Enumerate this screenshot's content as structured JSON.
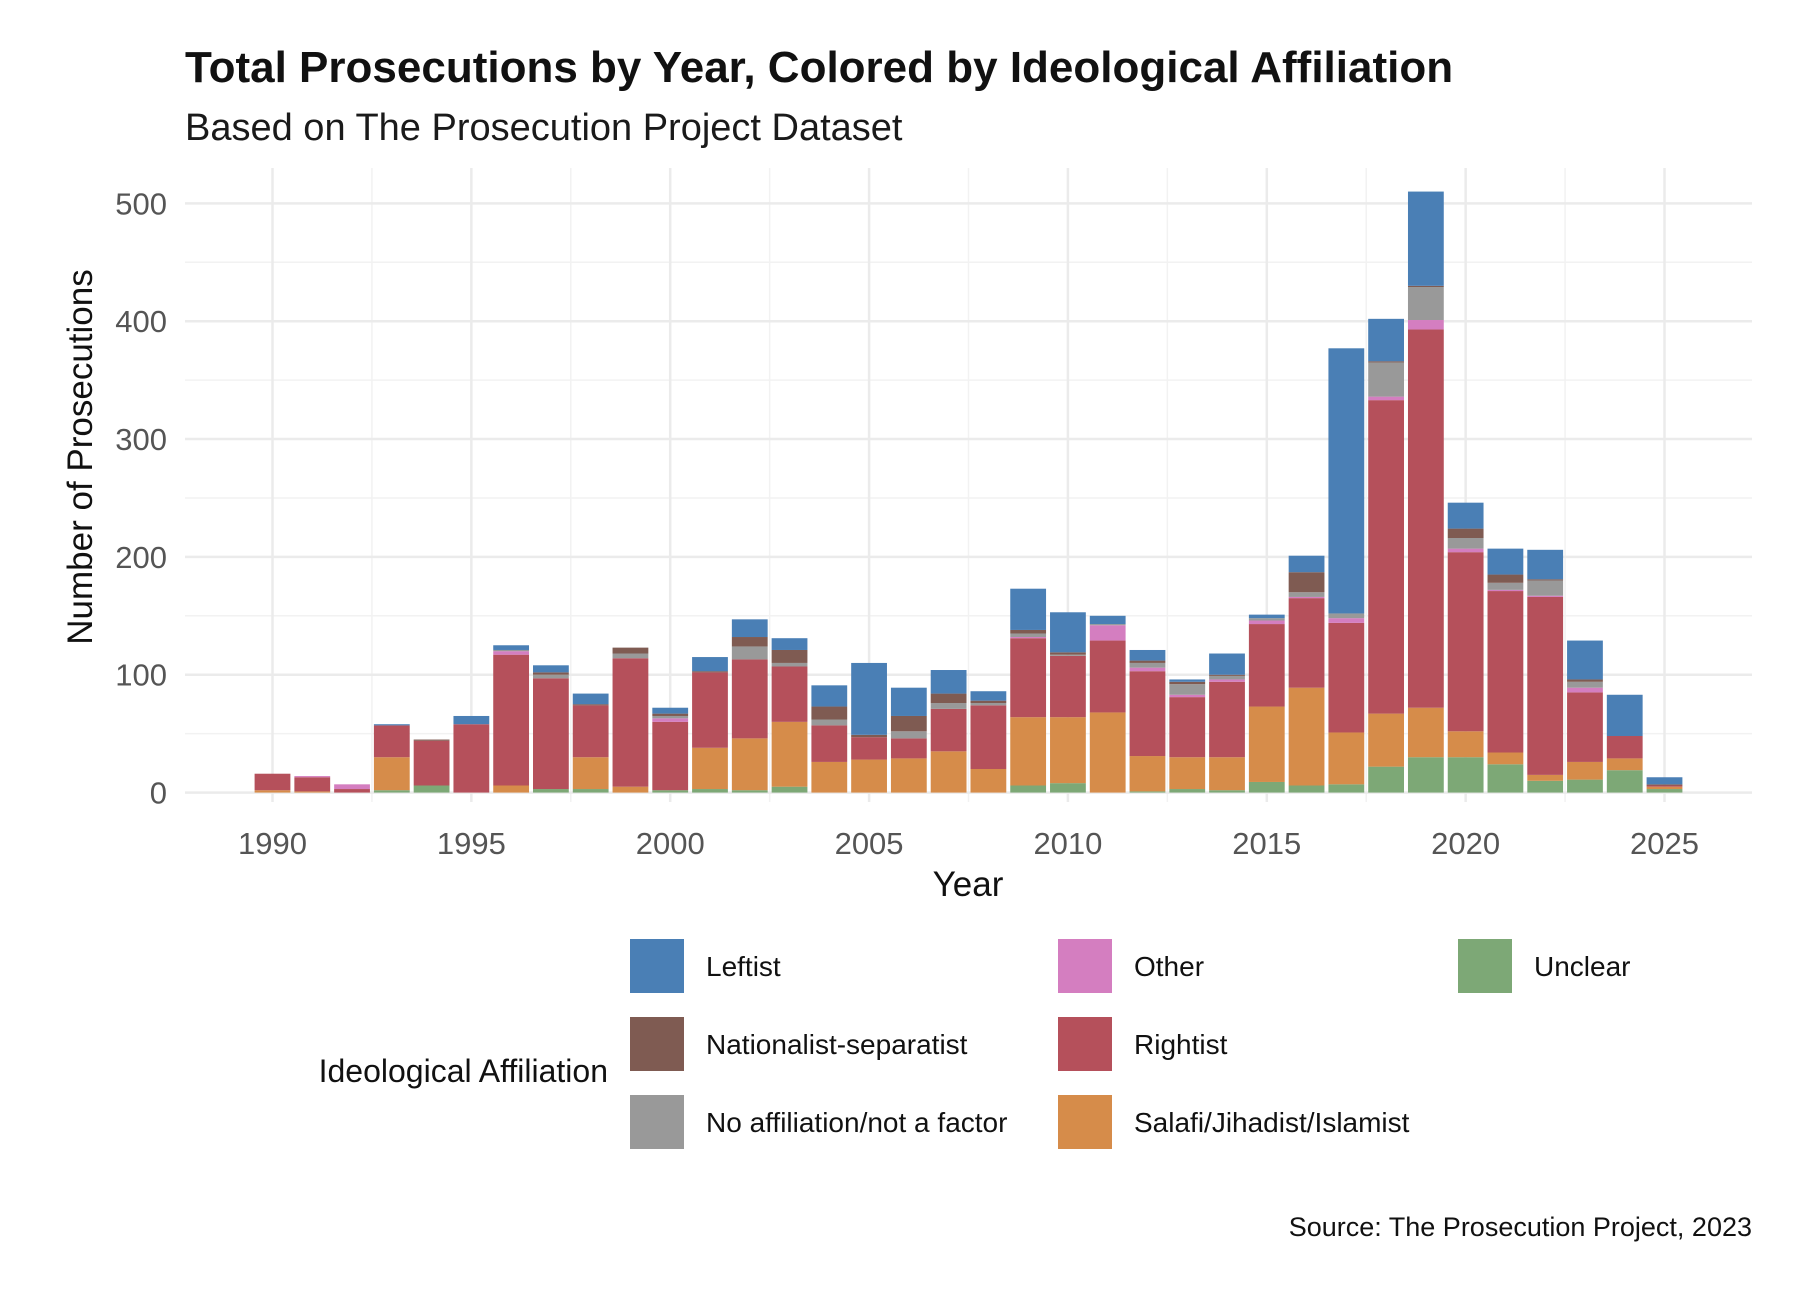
{
  "chart_data": {
    "type": "bar",
    "stacked": true,
    "title": "Total Prosecutions by Year, Colored by Ideological Affiliation",
    "subtitle": "Based on The Prosecution Project Dataset",
    "xlabel": "Year",
    "ylabel": "Number of Prosecutions",
    "caption": "Source: The Prosecution Project, 2023",
    "xlim": [
      1987.8,
      2027.2
    ],
    "ylim": [
      -8,
      530
    ],
    "x_ticks": [
      1990,
      1995,
      2000,
      2005,
      2010,
      2015,
      2020,
      2025
    ],
    "y_ticks": [
      0,
      100,
      200,
      300,
      400,
      500
    ],
    "grid": true,
    "legend": {
      "title": "Ideological Affiliation",
      "placement": "bottom",
      "columns": [
        [
          "Leftist",
          "Nationalist-separatist",
          "No affiliation/not a factor"
        ],
        [
          "Other",
          "Rightist",
          "Salafi/Jihadist/Islamist"
        ],
        [
          "Unclear"
        ]
      ]
    },
    "stack_order": [
      "Unclear",
      "Salafi/Jihadist/Islamist",
      "Rightist",
      "Other",
      "No affiliation/not a factor",
      "Nationalist-separatist",
      "Leftist"
    ],
    "series": [
      {
        "name": "Leftist",
        "color": "#4A7FB5"
      },
      {
        "name": "Nationalist-separatist",
        "color": "#7F5B52"
      },
      {
        "name": "No affiliation/not a factor",
        "color": "#999999"
      },
      {
        "name": "Other",
        "color": "#D47EC0"
      },
      {
        "name": "Rightist",
        "color": "#B5505B"
      },
      {
        "name": "Salafi/Jihadist/Islamist",
        "color": "#D68C4A"
      },
      {
        "name": "Unclear",
        "color": "#7DA876"
      }
    ],
    "data": [
      {
        "year": 1990,
        "Unclear": 0,
        "Salafi/Jihadist/Islamist": 2,
        "Rightist": 14,
        "Other": 0,
        "No affiliation/not a factor": 0,
        "Nationalist-separatist": 0,
        "Leftist": 0
      },
      {
        "year": 1991,
        "Unclear": 0,
        "Salafi/Jihadist/Islamist": 1,
        "Rightist": 12,
        "Other": 1,
        "No affiliation/not a factor": 0,
        "Nationalist-separatist": 0,
        "Leftist": 0
      },
      {
        "year": 1992,
        "Unclear": 0,
        "Salafi/Jihadist/Islamist": 0,
        "Rightist": 3,
        "Other": 4,
        "No affiliation/not a factor": 0,
        "Nationalist-separatist": 0,
        "Leftist": 0
      },
      {
        "year": 1993,
        "Unclear": 2,
        "Salafi/Jihadist/Islamist": 28,
        "Rightist": 27,
        "Other": 0,
        "No affiliation/not a factor": 0,
        "Nationalist-separatist": 0,
        "Leftist": 1
      },
      {
        "year": 1994,
        "Unclear": 6,
        "Salafi/Jihadist/Islamist": 0,
        "Rightist": 38,
        "Other": 0,
        "No affiliation/not a factor": 0,
        "Nationalist-separatist": 1,
        "Leftist": 0
      },
      {
        "year": 1995,
        "Unclear": 0,
        "Salafi/Jihadist/Islamist": 0,
        "Rightist": 58,
        "Other": 0,
        "No affiliation/not a factor": 0,
        "Nationalist-separatist": 0,
        "Leftist": 7
      },
      {
        "year": 1996,
        "Unclear": 0,
        "Salafi/Jihadist/Islamist": 6,
        "Rightist": 111,
        "Other": 3,
        "No affiliation/not a factor": 1,
        "Nationalist-separatist": 0,
        "Leftist": 4
      },
      {
        "year": 1997,
        "Unclear": 3,
        "Salafi/Jihadist/Islamist": 0,
        "Rightist": 94,
        "Other": 0,
        "No affiliation/not a factor": 3,
        "Nationalist-separatist": 2,
        "Leftist": 6
      },
      {
        "year": 1998,
        "Unclear": 3,
        "Salafi/Jihadist/Islamist": 27,
        "Rightist": 44,
        "Other": 0,
        "No affiliation/not a factor": 0,
        "Nationalist-separatist": 1,
        "Leftist": 9
      },
      {
        "year": 1999,
        "Unclear": 0,
        "Salafi/Jihadist/Islamist": 5,
        "Rightist": 109,
        "Other": 0,
        "No affiliation/not a factor": 4,
        "Nationalist-separatist": 5,
        "Leftist": 0
      },
      {
        "year": 2000,
        "Unclear": 2,
        "Salafi/Jihadist/Islamist": 0,
        "Rightist": 58,
        "Other": 3,
        "No affiliation/not a factor": 2,
        "Nationalist-separatist": 2,
        "Leftist": 5
      },
      {
        "year": 2001,
        "Unclear": 3,
        "Salafi/Jihadist/Islamist": 35,
        "Rightist": 64,
        "Other": 0,
        "No affiliation/not a factor": 0,
        "Nationalist-separatist": 1,
        "Leftist": 12
      },
      {
        "year": 2002,
        "Unclear": 2,
        "Salafi/Jihadist/Islamist": 44,
        "Rightist": 67,
        "Other": 0,
        "No affiliation/not a factor": 11,
        "Nationalist-separatist": 8,
        "Leftist": 15
      },
      {
        "year": 2003,
        "Unclear": 5,
        "Salafi/Jihadist/Islamist": 55,
        "Rightist": 47,
        "Other": 0,
        "No affiliation/not a factor": 3,
        "Nationalist-separatist": 11,
        "Leftist": 10
      },
      {
        "year": 2004,
        "Unclear": 0,
        "Salafi/Jihadist/Islamist": 26,
        "Rightist": 31,
        "Other": 0,
        "No affiliation/not a factor": 5,
        "Nationalist-separatist": 11,
        "Leftist": 18
      },
      {
        "year": 2005,
        "Unclear": 0,
        "Salafi/Jihadist/Islamist": 28,
        "Rightist": 19,
        "Other": 0,
        "No affiliation/not a factor": 0,
        "Nationalist-separatist": 2,
        "Leftist": 61
      },
      {
        "year": 2006,
        "Unclear": 0,
        "Salafi/Jihadist/Islamist": 29,
        "Rightist": 17,
        "Other": 0,
        "No affiliation/not a factor": 6,
        "Nationalist-separatist": 13,
        "Leftist": 24
      },
      {
        "year": 2007,
        "Unclear": 0,
        "Salafi/Jihadist/Islamist": 35,
        "Rightist": 36,
        "Other": 0,
        "No affiliation/not a factor": 5,
        "Nationalist-separatist": 8,
        "Leftist": 20
      },
      {
        "year": 2008,
        "Unclear": 0,
        "Salafi/Jihadist/Islamist": 20,
        "Rightist": 54,
        "Other": 0,
        "No affiliation/not a factor": 2,
        "Nationalist-separatist": 2,
        "Leftist": 8
      },
      {
        "year": 2009,
        "Unclear": 6,
        "Salafi/Jihadist/Islamist": 58,
        "Rightist": 67,
        "Other": 1,
        "No affiliation/not a factor": 3,
        "Nationalist-separatist": 3,
        "Leftist": 35
      },
      {
        "year": 2010,
        "Unclear": 8,
        "Salafi/Jihadist/Islamist": 56,
        "Rightist": 52,
        "Other": 0,
        "No affiliation/not a factor": 1,
        "Nationalist-separatist": 2,
        "Leftist": 34
      },
      {
        "year": 2011,
        "Unclear": 0,
        "Salafi/Jihadist/Islamist": 68,
        "Rightist": 61,
        "Other": 13,
        "No affiliation/not a factor": 1,
        "Nationalist-separatist": 0,
        "Leftist": 7
      },
      {
        "year": 2012,
        "Unclear": 1,
        "Salafi/Jihadist/Islamist": 30,
        "Rightist": 72,
        "Other": 3,
        "No affiliation/not a factor": 4,
        "Nationalist-separatist": 2,
        "Leftist": 9
      },
      {
        "year": 2013,
        "Unclear": 3,
        "Salafi/Jihadist/Islamist": 27,
        "Rightist": 51,
        "Other": 2,
        "No affiliation/not a factor": 9,
        "Nationalist-separatist": 2,
        "Leftist": 2
      },
      {
        "year": 2014,
        "Unclear": 2,
        "Salafi/Jihadist/Islamist": 28,
        "Rightist": 64,
        "Other": 2,
        "No affiliation/not a factor": 3,
        "Nationalist-separatist": 1,
        "Leftist": 18
      },
      {
        "year": 2015,
        "Unclear": 9,
        "Salafi/Jihadist/Islamist": 64,
        "Rightist": 70,
        "Other": 3,
        "No affiliation/not a factor": 2,
        "Nationalist-separatist": 0,
        "Leftist": 3
      },
      {
        "year": 2016,
        "Unclear": 6,
        "Salafi/Jihadist/Islamist": 83,
        "Rightist": 76,
        "Other": 1,
        "No affiliation/not a factor": 4,
        "Nationalist-separatist": 17,
        "Leftist": 14
      },
      {
        "year": 2017,
        "Unclear": 7,
        "Salafi/Jihadist/Islamist": 44,
        "Rightist": 93,
        "Other": 4,
        "No affiliation/not a factor": 4,
        "Nationalist-separatist": 0,
        "Leftist": 225
      },
      {
        "year": 2018,
        "Unclear": 22,
        "Salafi/Jihadist/Islamist": 45,
        "Rightist": 266,
        "Other": 3,
        "No affiliation/not a factor": 29,
        "Nationalist-separatist": 1,
        "Leftist": 36
      },
      {
        "year": 2019,
        "Unclear": 30,
        "Salafi/Jihadist/Islamist": 42,
        "Rightist": 321,
        "Other": 8,
        "No affiliation/not a factor": 28,
        "Nationalist-separatist": 1,
        "Leftist": 80
      },
      {
        "year": 2020,
        "Unclear": 30,
        "Salafi/Jihadist/Islamist": 22,
        "Rightist": 152,
        "Other": 3,
        "No affiliation/not a factor": 9,
        "Nationalist-separatist": 8,
        "Leftist": 22
      },
      {
        "year": 2021,
        "Unclear": 24,
        "Salafi/Jihadist/Islamist": 10,
        "Rightist": 137,
        "Other": 1,
        "No affiliation/not a factor": 6,
        "Nationalist-separatist": 7,
        "Leftist": 22
      },
      {
        "year": 2022,
        "Unclear": 10,
        "Salafi/Jihadist/Islamist": 5,
        "Rightist": 151,
        "Other": 1,
        "No affiliation/not a factor": 13,
        "Nationalist-separatist": 1,
        "Leftist": 25
      },
      {
        "year": 2023,
        "Unclear": 11,
        "Salafi/Jihadist/Islamist": 15,
        "Rightist": 59,
        "Other": 4,
        "No affiliation/not a factor": 5,
        "Nationalist-separatist": 2,
        "Leftist": 33
      },
      {
        "year": 2024,
        "Unclear": 19,
        "Salafi/Jihadist/Islamist": 10,
        "Rightist": 19,
        "Other": 0,
        "No affiliation/not a factor": 0,
        "Nationalist-separatist": 0,
        "Leftist": 35
      },
      {
        "year": 2025,
        "Unclear": 3,
        "Salafi/Jihadist/Islamist": 2,
        "Rightist": 1,
        "Other": 0,
        "No affiliation/not a factor": 0,
        "Nationalist-separatist": 1,
        "Leftist": 6
      }
    ]
  }
}
